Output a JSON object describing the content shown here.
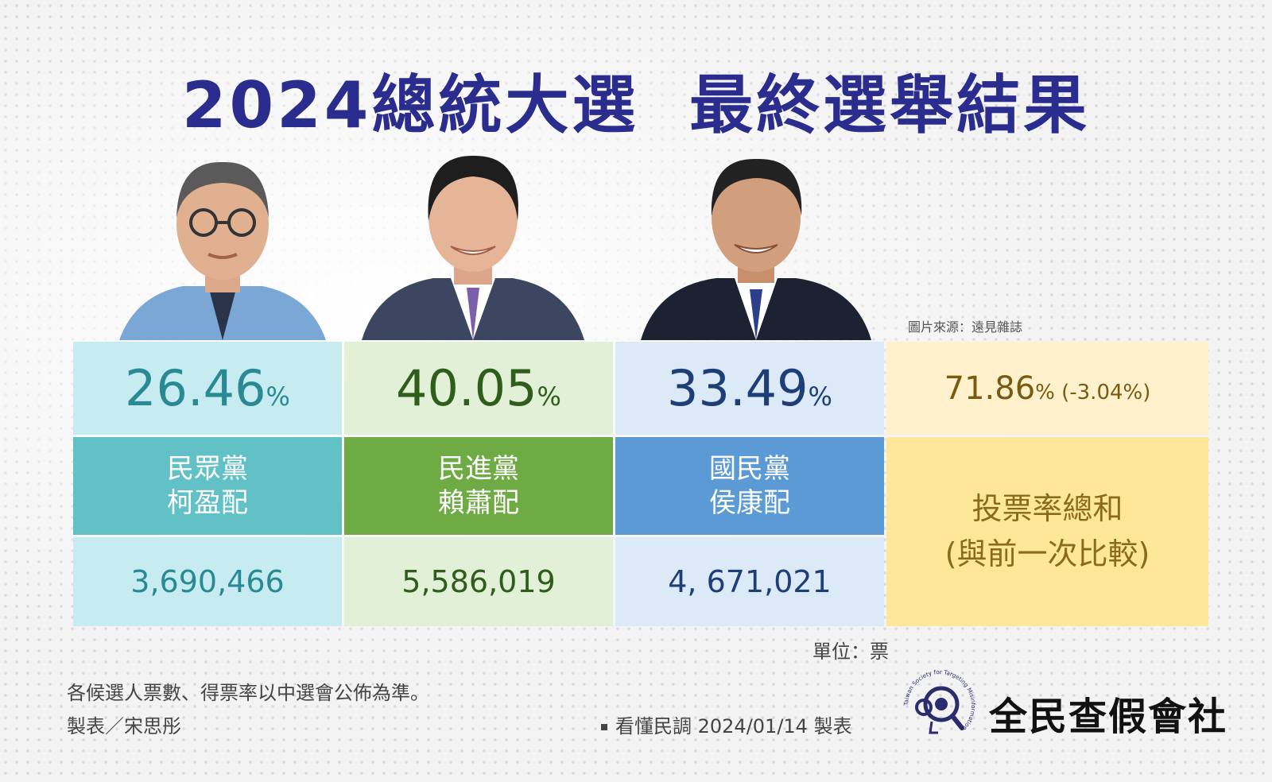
{
  "title": "2024總統大選  最終選舉結果",
  "photo_source": "圖片來源：遠見雜誌",
  "candidates": [
    {
      "pct": "26.46",
      "pct_unit": "%",
      "party": "民眾黨",
      "ticket": "柯盈配",
      "votes": "3,690,466",
      "color": "#62c1c7"
    },
    {
      "pct": "40.05",
      "pct_unit": "%",
      "party": "民進黨",
      "ticket": "賴蕭配",
      "votes": "5,586,019",
      "color": "#6fab45"
    },
    {
      "pct": "33.49",
      "pct_unit": "%",
      "party": "國民黨",
      "ticket": "侯康配",
      "votes": "4, 671,021",
      "color": "#5b9ad4"
    }
  ],
  "turnout": {
    "pct": "71.86",
    "pct_suffix": "% (-3.04%)",
    "label_line1": "投票率總和",
    "label_line2": "(與前一次比較)",
    "color": "#ffe79a"
  },
  "unit": "單位：票",
  "note": "各候選人票數、得票率以中選會公佈為準。",
  "author": "製表／宋思彤",
  "credit": "看懂民調 2024/01/14 製表",
  "logo": {
    "name": "全民查假會社",
    "ring_text": "Taiwan Society for Targeting Misinformation",
    "icon": "magnifier-logo-icon"
  }
}
